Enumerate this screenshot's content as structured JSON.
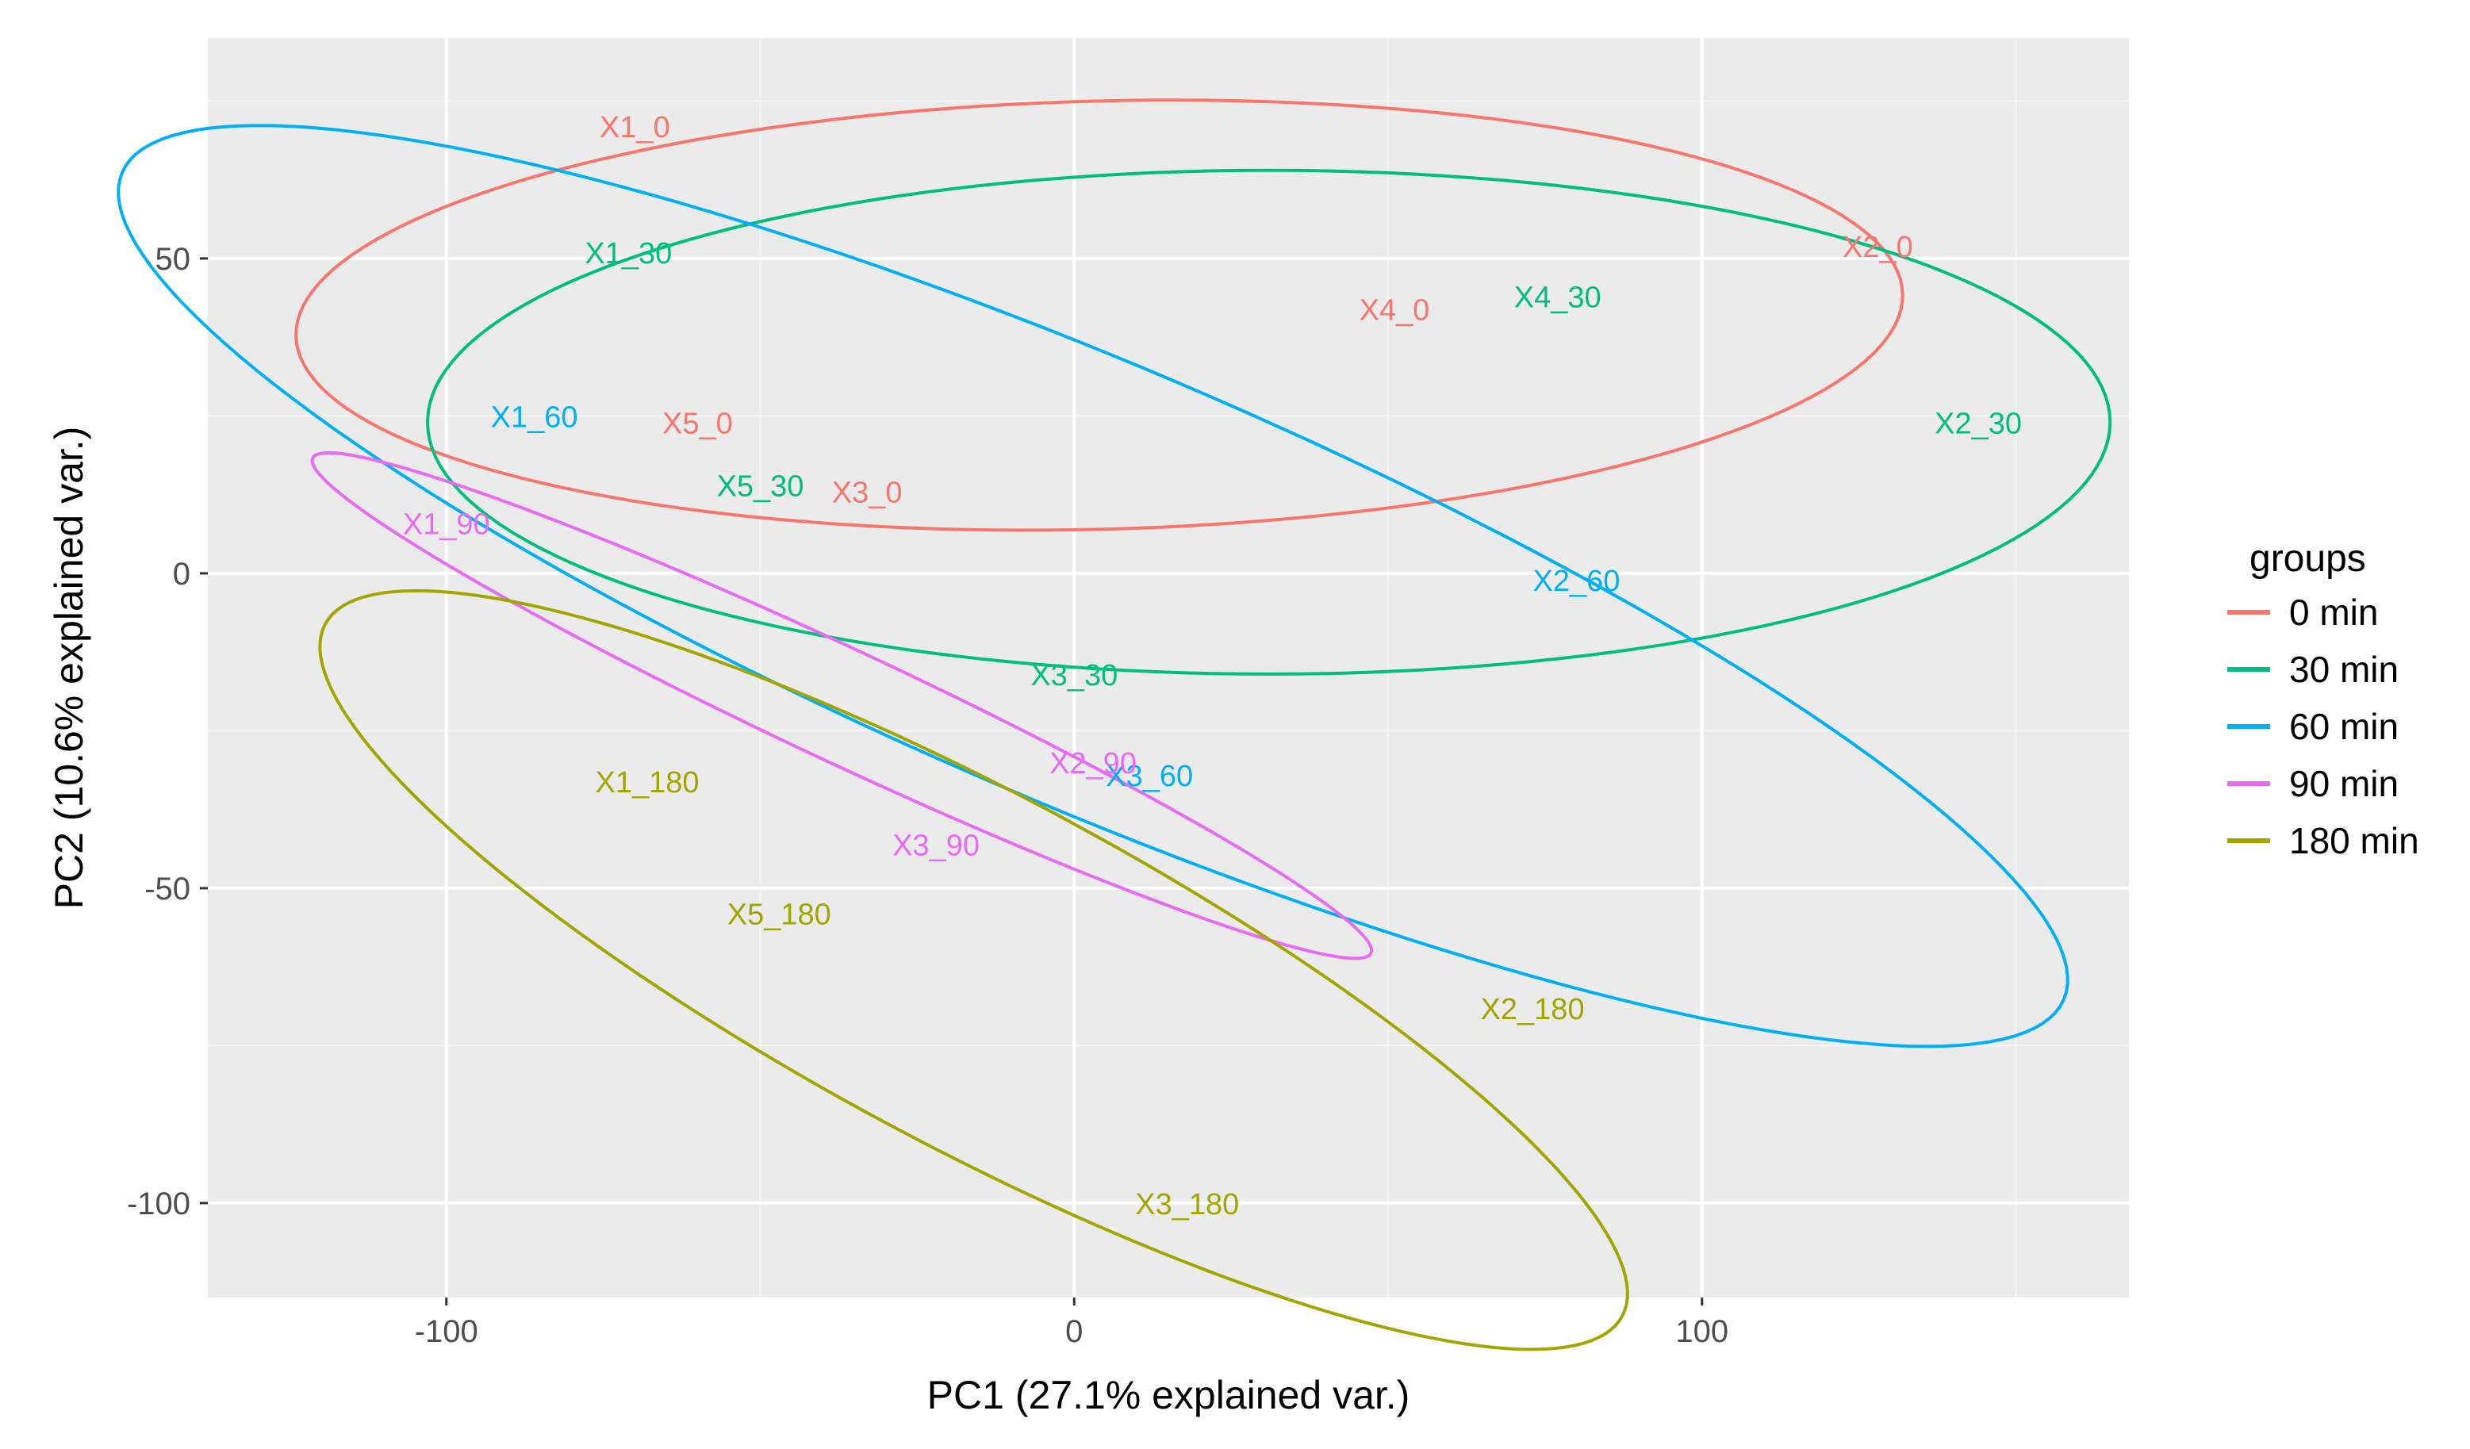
{
  "chart_data": {
    "type": "scatter",
    "subtype": "pca-biplot-with-ellipses",
    "xlabel": "PC1 (27.1% explained var.)",
    "ylabel": "PC2 (10.6% explained var.)",
    "xlim": [
      -138,
      168
    ],
    "ylim": [
      -115,
      85
    ],
    "xticks": [
      -100,
      0,
      100
    ],
    "yticks": [
      -100,
      -50,
      0,
      50
    ],
    "xtick_labels": [
      "-100",
      "0",
      "100"
    ],
    "ytick_labels": [
      "-100",
      "-50",
      "0",
      "50"
    ],
    "grid": true,
    "legend": {
      "title": "groups",
      "position": "right",
      "entries": [
        {
          "name": "0 min",
          "color": "#F8766D"
        },
        {
          "name": "30 min",
          "color": "#00BF7D"
        },
        {
          "name": "60 min",
          "color": "#00B0F6"
        },
        {
          "name": "90 min",
          "color": "#E76BF3"
        },
        {
          "name": "180 min",
          "color": "#A3A500"
        }
      ]
    },
    "series": [
      {
        "name": "0 min",
        "color": "#F8766D",
        "points": [
          {
            "label": "X1_0",
            "x": -70,
            "y": 71
          },
          {
            "label": "X2_0",
            "x": 128,
            "y": 52
          },
          {
            "label": "X3_0",
            "x": -33,
            "y": 13
          },
          {
            "label": "X4_0",
            "x": 51,
            "y": 42
          },
          {
            "label": "X5_0",
            "x": -60,
            "y": 24
          }
        ],
        "ellipse": {
          "cx": 4,
          "cy": 41,
          "rx": 128,
          "ry": 34,
          "angle": 1.5
        }
      },
      {
        "name": "30 min",
        "color": "#00BF7D",
        "points": [
          {
            "label": "X1_30",
            "x": -71,
            "y": 51
          },
          {
            "label": "X2_30",
            "x": 144,
            "y": 24
          },
          {
            "label": "X3_30",
            "x": 0,
            "y": -16
          },
          {
            "label": "X4_30",
            "x": 77,
            "y": 44
          },
          {
            "label": "X5_30",
            "x": -50,
            "y": 14
          }
        ],
        "ellipse": {
          "cx": 31,
          "cy": 24,
          "rx": 134,
          "ry": 40,
          "angle": 0
        }
      },
      {
        "name": "60 min",
        "color": "#00B0F6",
        "points": [
          {
            "label": "X1_60",
            "x": -86,
            "y": 25
          },
          {
            "label": "X2_60",
            "x": 80,
            "y": -1
          },
          {
            "label": "X3_60",
            "x": 12,
            "y": -32
          }
        ],
        "ellipse": {
          "cx": 3,
          "cy": -2,
          "rx": 168,
          "ry": 35,
          "angle": -23
        }
      },
      {
        "name": "90 min",
        "color": "#E76BF3",
        "points": [
          {
            "label": "X1_90",
            "x": -100,
            "y": 8
          },
          {
            "label": "X2_90",
            "x": 3,
            "y": -30
          },
          {
            "label": "X3_90",
            "x": -22,
            "y": -43
          }
        ],
        "ellipse": {
          "cx": -37,
          "cy": -21,
          "rx": 93,
          "ry": 9,
          "angle": -25
        }
      },
      {
        "name": "180 min",
        "color": "#A3A500",
        "points": [
          {
            "label": "X1_180",
            "x": -68,
            "y": -33
          },
          {
            "label": "X2_180",
            "x": 73,
            "y": -69
          },
          {
            "label": "X3_180",
            "x": 18,
            "y": -100
          },
          {
            "label": "X5_180",
            "x": -47,
            "y": -54
          }
        ],
        "ellipse": {
          "cx": -16,
          "cy": -63,
          "rx": 117,
          "ry": 28,
          "angle": -28
        }
      }
    ]
  }
}
